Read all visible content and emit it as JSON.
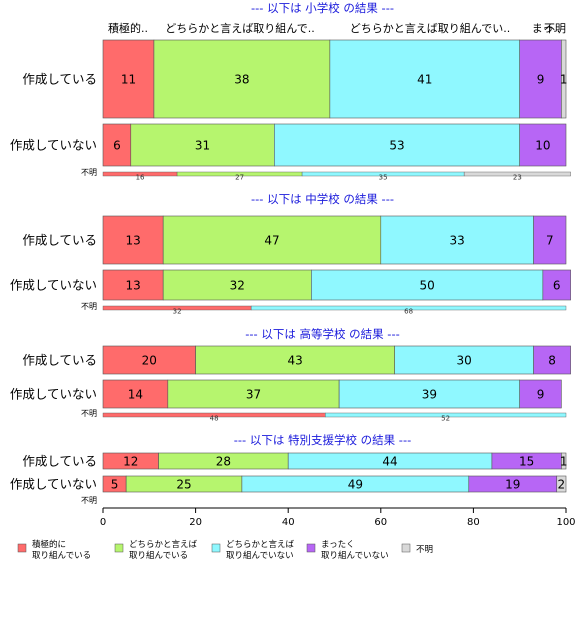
{
  "chart_data": {
    "type": "bar",
    "orientation": "horizontal",
    "stacked": true,
    "xlim": [
      0,
      100
    ],
    "x_ticks": [
      0,
      20,
      40,
      60,
      80,
      100
    ],
    "category_header": [
      "積極的..",
      "どちらかと言えば取り組んで..",
      "どちらかと言えば取り組んでい..",
      "まっ..",
      "不明"
    ],
    "legend_position": "bottom",
    "series": [
      {
        "name": "積極的に\n取り組んでいる",
        "color": "#ff6b6b"
      },
      {
        "name": "どちらかと言えば\n取り組んでいる",
        "color": "#b6f56e"
      },
      {
        "name": "どちらかと言えば\n取り組んでいない",
        "color": "#8ff8ff"
      },
      {
        "name": "まったく\n取り組んでいない",
        "color": "#b766f5"
      },
      {
        "name": "不明",
        "color": "#d9d9d9"
      }
    ],
    "panels": [
      {
        "title": "--- 以下は 小学校 の結果 ---",
        "rows": [
          {
            "label": "作成している",
            "values": [
              11,
              38,
              41,
              9,
              1
            ]
          },
          {
            "label": "作成していない",
            "values": [
              6,
              31,
              53,
              10,
              0
            ]
          },
          {
            "label": "不明",
            "values": [
              16,
              27,
              35,
              0,
              23
            ]
          }
        ]
      },
      {
        "title": "--- 以下は 中学校 の結果 ---",
        "rows": [
          {
            "label": "作成している",
            "values": [
              13,
              47,
              33,
              7,
              0
            ]
          },
          {
            "label": "作成していない",
            "values": [
              13,
              32,
              50,
              6,
              0
            ]
          },
          {
            "label": "不明",
            "values": [
              32,
              0,
              68,
              0,
              0
            ]
          }
        ]
      },
      {
        "title": "--- 以下は 高等学校 の結果 ---",
        "rows": [
          {
            "label": "作成している",
            "values": [
              20,
              43,
              30,
              8,
              0
            ]
          },
          {
            "label": "作成していない",
            "values": [
              14,
              37,
              39,
              9,
              0
            ]
          },
          {
            "label": "不明",
            "values": [
              48,
              0,
              52,
              0,
              0
            ]
          }
        ]
      },
      {
        "title": "--- 以下は 特別支援学校 の結果 ---",
        "rows": [
          {
            "label": "作成している",
            "values": [
              12,
              28,
              44,
              15,
              1
            ]
          },
          {
            "label": "作成していない",
            "values": [
              5,
              25,
              49,
              19,
              2
            ]
          },
          {
            "label": "不明",
            "values": []
          }
        ]
      }
    ]
  }
}
